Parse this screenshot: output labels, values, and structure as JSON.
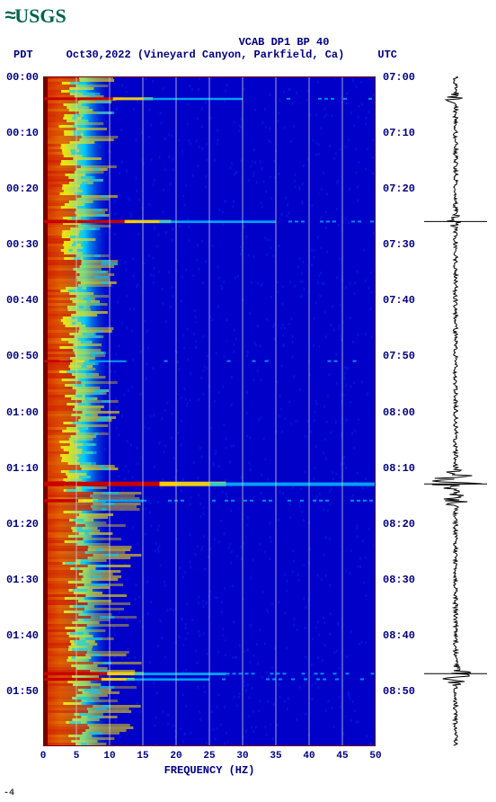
{
  "logo": {
    "wave": "≈",
    "text": "USGS"
  },
  "header": {
    "station": "VCAB DP1 BP 40",
    "tz_left": "PDT",
    "date": "Oct30,2022",
    "location": "(Vineyard Canyon, Parkfield, Ca)",
    "tz_right": "UTC"
  },
  "chart": {
    "type": "spectrogram",
    "colors": {
      "bg": "#0000c8",
      "low": "#001ae6",
      "mid": "#00c8ff",
      "hi": "#ffe600",
      "max": "#c80000",
      "border": "#780000",
      "grid": "#d0d0d0",
      "text": "#000080"
    },
    "xlim": [
      0,
      50
    ],
    "xtick_step": 5,
    "xticks": [
      0,
      5,
      10,
      15,
      20,
      25,
      30,
      35,
      40,
      45,
      50
    ],
    "xlabel": "FREQUENCY (HZ)",
    "time_span_min": 120,
    "ylabels_left": [
      "00:00",
      "00:10",
      "00:20",
      "00:30",
      "00:40",
      "00:50",
      "01:00",
      "01:10",
      "01:20",
      "01:30",
      "01:40",
      "01:50"
    ],
    "ylabels_right": [
      "07:00",
      "07:10",
      "07:20",
      "07:30",
      "07:40",
      "07:50",
      "08:00",
      "08:10",
      "08:20",
      "08:30",
      "08:40",
      "08:50"
    ],
    "events": [
      {
        "t": 4,
        "intensity": 0.35,
        "width": 0.6
      },
      {
        "t": 26,
        "intensity": 0.5,
        "width": 0.7
      },
      {
        "t": 51,
        "intensity": 0.15,
        "width": 0.25
      },
      {
        "t": 73,
        "intensity": 1.0,
        "width": 1.0
      },
      {
        "t": 76,
        "intensity": 0.45,
        "width": 0.3
      },
      {
        "t": 107,
        "intensity": 0.55,
        "width": 0.55
      },
      {
        "t": 108,
        "intensity": 0.4,
        "width": 0.5
      }
    ],
    "lowfreq_band": {
      "from": 0,
      "to": 8
    }
  },
  "seismogram": {
    "amplitude_color": "#000000",
    "events_t": [
      26,
      73,
      107
    ]
  },
  "footnote": "-4"
}
